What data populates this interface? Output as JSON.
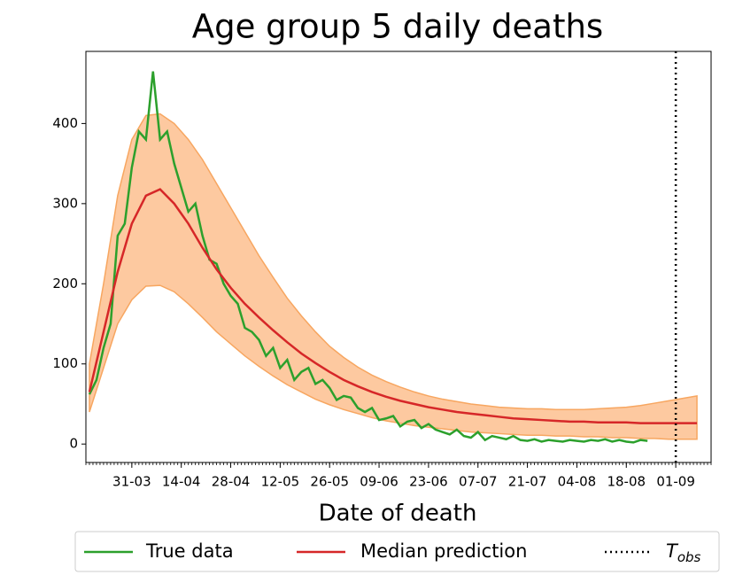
{
  "chart_data": {
    "type": "line",
    "title": "Age group 5 daily deaths",
    "x_label": "Date of death",
    "xlim": [
      "18-03",
      "11-09"
    ],
    "xticks": [
      "31-03",
      "14-04",
      "28-04",
      "12-05",
      "26-05",
      "09-06",
      "23-06",
      "07-07",
      "21-07",
      "04-08",
      "18-08",
      "01-09"
    ],
    "ylim": [
      -23,
      490
    ],
    "yticks": [
      0,
      100,
      200,
      300,
      400
    ],
    "series": [
      {
        "name": "True data",
        "color": "#2ca02c",
        "x": [
          "19-03",
          "21-03",
          "23-03",
          "25-03",
          "27-03",
          "29-03",
          "31-03",
          "02-04",
          "04-04",
          "06-04",
          "08-04",
          "10-04",
          "12-04",
          "14-04",
          "16-04",
          "18-04",
          "20-04",
          "22-04",
          "24-04",
          "26-04",
          "28-04",
          "30-04",
          "02-05",
          "04-05",
          "06-05",
          "08-05",
          "10-05",
          "12-05",
          "14-05",
          "16-05",
          "18-05",
          "20-05",
          "22-05",
          "24-05",
          "26-05",
          "28-05",
          "30-05",
          "01-06",
          "03-06",
          "05-06",
          "07-06",
          "09-06",
          "11-06",
          "13-06",
          "15-06",
          "17-06",
          "19-06",
          "21-06",
          "23-06",
          "25-06",
          "27-06",
          "29-06",
          "01-07",
          "03-07",
          "05-07",
          "07-07",
          "09-07",
          "11-07",
          "13-07",
          "15-07",
          "17-07",
          "19-07",
          "21-07",
          "23-07",
          "25-07",
          "27-07",
          "29-07",
          "31-07",
          "02-08",
          "04-08",
          "06-08",
          "08-08",
          "10-08",
          "12-08",
          "14-08",
          "16-08",
          "18-08",
          "20-08",
          "22-08",
          "24-08"
        ],
        "values": [
          62,
          80,
          120,
          150,
          260,
          275,
          345,
          390,
          380,
          465,
          380,
          390,
          350,
          320,
          290,
          300,
          260,
          230,
          225,
          200,
          185,
          175,
          145,
          140,
          130,
          110,
          120,
          95,
          105,
          80,
          90,
          95,
          75,
          80,
          70,
          55,
          60,
          58,
          45,
          40,
          45,
          30,
          32,
          35,
          22,
          28,
          30,
          20,
          25,
          18,
          15,
          12,
          18,
          10,
          8,
          15,
          5,
          10,
          8,
          6,
          10,
          5,
          4,
          6,
          3,
          5,
          4,
          3,
          5,
          4,
          3,
          5,
          4,
          6,
          3,
          5,
          3,
          2,
          5,
          4
        ]
      },
      {
        "name": "Median prediction",
        "color": "#d62728",
        "x": [
          "19-03",
          "23-03",
          "27-03",
          "31-03",
          "04-04",
          "08-04",
          "12-04",
          "16-04",
          "20-04",
          "24-04",
          "28-04",
          "02-05",
          "06-05",
          "10-05",
          "14-05",
          "18-05",
          "22-05",
          "26-05",
          "30-05",
          "03-06",
          "07-06",
          "11-06",
          "15-06",
          "19-06",
          "23-06",
          "27-06",
          "01-07",
          "05-07",
          "09-07",
          "13-07",
          "17-07",
          "21-07",
          "25-07",
          "29-07",
          "02-08",
          "06-08",
          "10-08",
          "14-08",
          "18-08",
          "22-08",
          "26-08",
          "30-08",
          "03-09",
          "07-09"
        ],
        "values": [
          65,
          140,
          215,
          275,
          310,
          318,
          300,
          275,
          245,
          218,
          195,
          175,
          158,
          142,
          127,
          113,
          101,
          90,
          80,
          72,
          65,
          59,
          54,
          50,
          46,
          43,
          40,
          38,
          36,
          34,
          32,
          31,
          30,
          29,
          28,
          28,
          27,
          27,
          27,
          26,
          26,
          26,
          26,
          26
        ],
        "lower": [
          40,
          95,
          150,
          180,
          197,
          198,
          190,
          175,
          158,
          140,
          125,
          110,
          97,
          85,
          74,
          65,
          56,
          49,
          43,
          38,
          33,
          29,
          26,
          23,
          21,
          19,
          17,
          15,
          14,
          13,
          12,
          11,
          11,
          10,
          10,
          9,
          9,
          8,
          8,
          7,
          7,
          6,
          6,
          6
        ],
        "upper": [
          100,
          200,
          310,
          380,
          410,
          412,
          400,
          380,
          355,
          325,
          295,
          265,
          235,
          208,
          182,
          160,
          140,
          122,
          108,
          96,
          86,
          78,
          71,
          65,
          60,
          56,
          53,
          50,
          48,
          46,
          45,
          44,
          44,
          43,
          43,
          43,
          44,
          45,
          46,
          48,
          51,
          54,
          57,
          60
        ],
        "band_color": "#fdc9a0",
        "band_edge": "#f7a660"
      }
    ],
    "vline": {
      "x": "01-09",
      "name": "T",
      "subscript": "obs",
      "color": "#000000"
    }
  }
}
